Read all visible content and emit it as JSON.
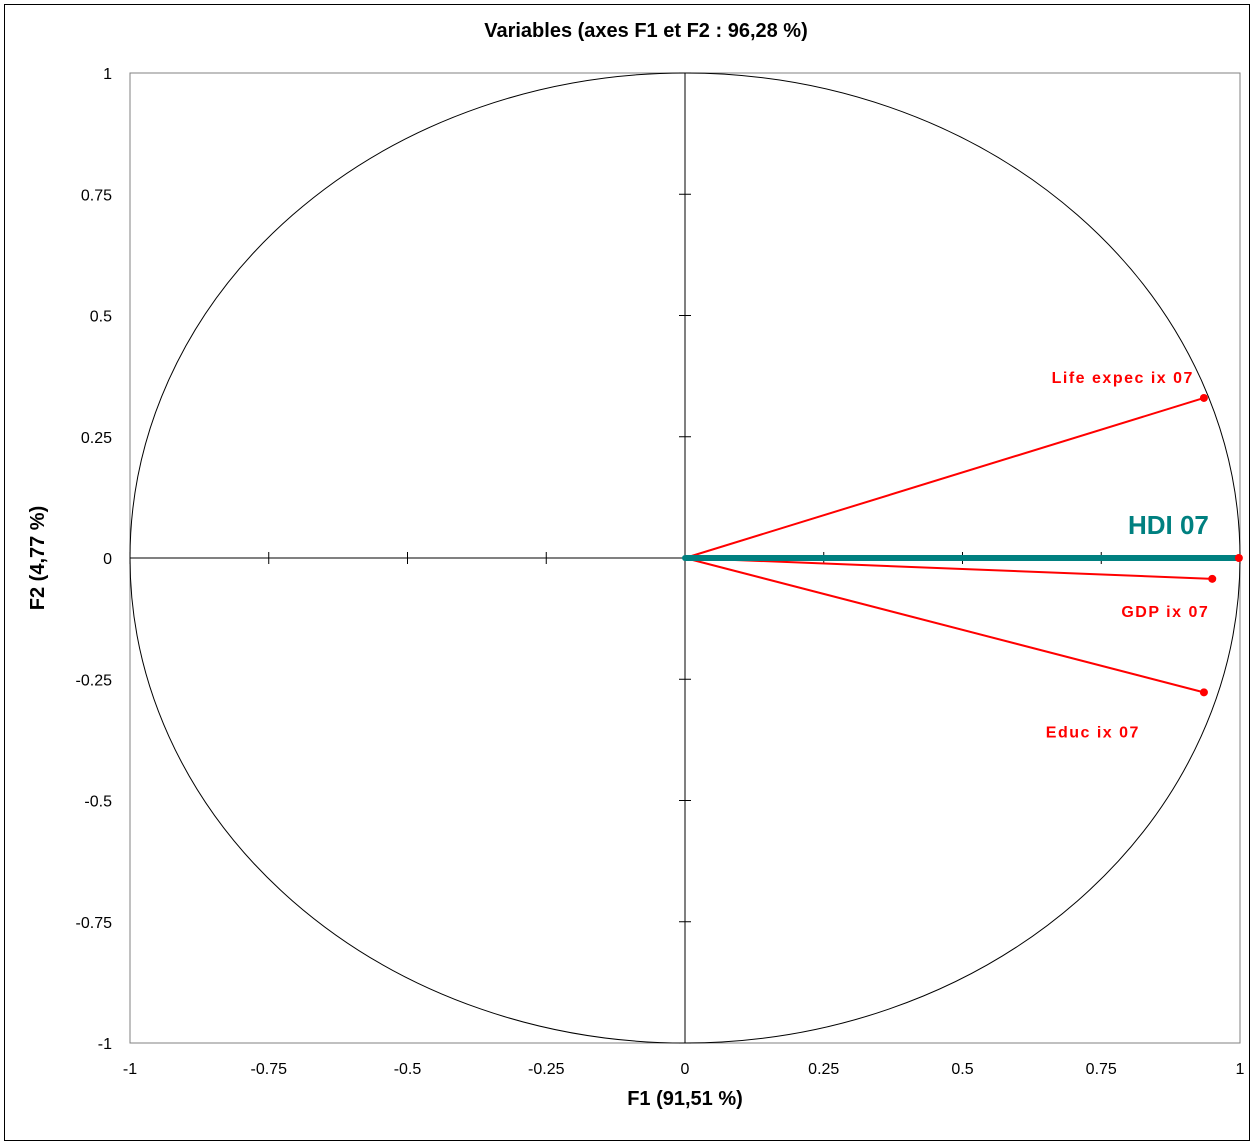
{
  "chart_data": {
    "type": "scatter",
    "title": "Variables (axes F1 et F2 : 96,28 %)",
    "xlabel": "F1 (91,51 %)",
    "ylabel": "F2 (4,77 %)",
    "xlim": [
      -1,
      1
    ],
    "ylim": [
      -1,
      1
    ],
    "x_ticks": [
      "-1",
      "-0.75",
      "-0.5",
      "-0.25",
      "0",
      "0.25",
      "0.5",
      "0.75",
      "1"
    ],
    "y_ticks": [
      "1",
      "0.75",
      "0.5",
      "0.25",
      "0",
      "-0.25",
      "-0.5",
      "-0.75",
      "-1"
    ],
    "grid": false,
    "correlation_circle": true,
    "variables": [
      {
        "name": "Life expec ix 07",
        "x": 0.935,
        "y": 0.33,
        "color": "#ff0000"
      },
      {
        "name": "GDP ix 07",
        "x": 0.95,
        "y": -0.043,
        "color": "#ff0000"
      },
      {
        "name": "Educ ix 07",
        "x": 0.935,
        "y": -0.277,
        "color": "#ff0000"
      },
      {
        "name": "HDI 07",
        "x": 0.998,
        "y": 0.0,
        "color": "#008080"
      }
    ]
  }
}
